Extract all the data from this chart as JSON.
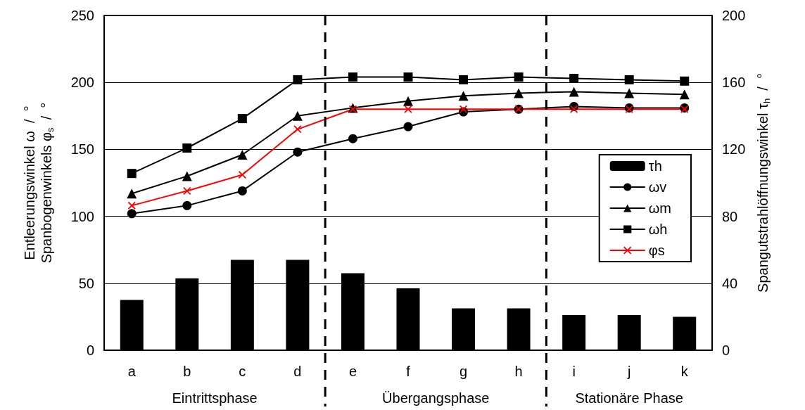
{
  "chart_data": {
    "type": "line",
    "categories": [
      "a",
      "b",
      "c",
      "d",
      "e",
      "f",
      "g",
      "h",
      "i",
      "j",
      "k"
    ],
    "series": [
      {
        "name": "τh",
        "type": "bar",
        "axis": "y2",
        "color": "#000000",
        "values": [
          30,
          43,
          54,
          54,
          46,
          37,
          25,
          25,
          21,
          21,
          20
        ]
      },
      {
        "name": "ωv",
        "color": "#000000",
        "marker": "circle",
        "values": [
          102,
          108,
          119,
          148,
          158,
          167,
          178,
          180,
          182,
          181,
          181
        ]
      },
      {
        "name": "ωm",
        "color": "#000000",
        "marker": "triangle",
        "values": [
          117,
          130,
          146,
          175,
          181,
          186,
          190,
          192,
          193,
          192,
          191
        ]
      },
      {
        "name": "ωh",
        "color": "#000000",
        "marker": "square",
        "values": [
          132,
          151,
          173,
          202,
          204,
          204,
          202,
          204,
          203,
          202,
          201
        ]
      },
      {
        "name": "φs",
        "color": "#ff0000",
        "marker": "cross",
        "values": [
          108,
          119,
          131,
          165,
          180,
          180,
          180,
          180,
          180,
          180,
          180
        ]
      }
    ],
    "ylabel": "Entleerungswinkel ω  /  °\nSpanbogenwinkels φ$_{s}$  /  °",
    "y2label": "Spangutstrahlöffnungswinkel τ$_{h}$  /  °",
    "ylim": [
      0,
      250
    ],
    "yticks": [
      0,
      50,
      100,
      150,
      200,
      250
    ],
    "y2lim": [
      0,
      200
    ],
    "y2ticks": [
      0,
      40,
      80,
      120,
      160,
      200
    ],
    "grid": "y",
    "legend": "right",
    "line_style": "solid",
    "annotations": [
      "Eintrittsphase",
      "Übergangsphase",
      "Stationäre Phase"
    ]
  }
}
